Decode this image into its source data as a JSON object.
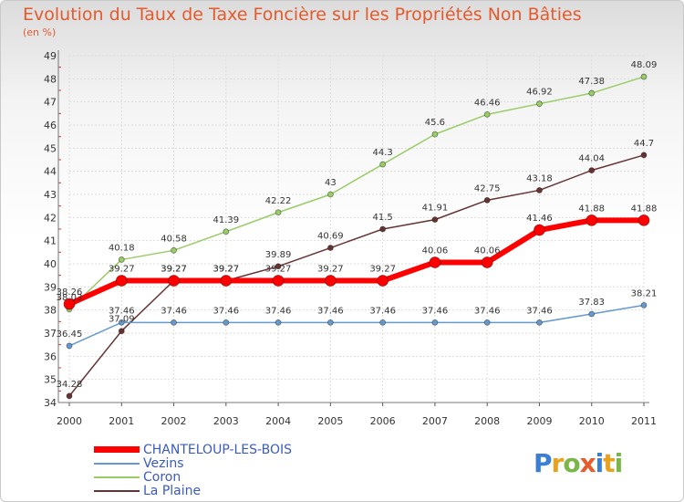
{
  "chart_data": {
    "type": "line",
    "title": "Evolution du Taux de Taxe Foncière sur les Propriétés Non Bâties",
    "ylabel": "(en %)",
    "xlabel": "",
    "x": [
      "2000",
      "2001",
      "2002",
      "2003",
      "2004",
      "2005",
      "2006",
      "2007",
      "2008",
      "2009",
      "2010",
      "2011"
    ],
    "ylim": [
      34,
      49
    ],
    "yticks": [
      "34",
      "35",
      "36",
      "37",
      "38",
      "39",
      "40",
      "41",
      "42",
      "43",
      "44",
      "45",
      "46",
      "47",
      "48",
      "49"
    ],
    "grid": true,
    "legend_position": "bottom-left",
    "series": [
      {
        "name": "CHANTELOUP-LES-BOIS",
        "color": "#ff0000",
        "width": 6,
        "marker": 6,
        "values": [
          38.26,
          39.27,
          39.27,
          39.27,
          39.27,
          39.27,
          39.27,
          40.06,
          40.06,
          41.46,
          41.88,
          41.88
        ],
        "labels": [
          "38.26",
          "39.27",
          "39.27",
          "39.27",
          "39.27",
          "39.27",
          "39.27",
          "40.06",
          "40.06",
          "41.46",
          "41.88",
          "41.88"
        ]
      },
      {
        "name": "Vezins",
        "color": "#6699cc",
        "width": 1.5,
        "marker": 3,
        "values": [
          36.45,
          37.46,
          37.46,
          37.46,
          37.46,
          37.46,
          37.46,
          37.46,
          37.46,
          37.46,
          37.83,
          38.21
        ],
        "labels": [
          "36.45",
          "37.46",
          "37.46",
          "37.46",
          "37.46",
          "37.46",
          "37.46",
          "37.46",
          "37.46",
          "37.46",
          "37.83",
          "38.21"
        ]
      },
      {
        "name": "Coron",
        "color": "#99cc66",
        "width": 1.5,
        "marker": 3,
        "values": [
          38.03,
          40.18,
          40.58,
          41.39,
          42.22,
          43,
          44.3,
          45.6,
          46.46,
          46.92,
          47.38,
          48.09
        ],
        "labels": [
          "38.03",
          "40.18",
          "40.58",
          "41.39",
          "42.22",
          "43",
          "44.3",
          "45.6",
          "46.46",
          "46.92",
          "47.38",
          "48.09"
        ]
      },
      {
        "name": "La Plaine",
        "color": "#663333",
        "width": 1.5,
        "marker": 3,
        "values": [
          34.28,
          37.09,
          39.27,
          39.27,
          39.89,
          40.69,
          41.5,
          41.91,
          42.75,
          43.18,
          44.04,
          44.7
        ],
        "labels": [
          "34.28",
          "37.09",
          "39.27",
          "39.27",
          "39.89",
          "40.69",
          "41.5",
          "41.91",
          "42.75",
          "43.18",
          "44.04",
          "44.7"
        ]
      }
    ]
  },
  "legend": {
    "items": [
      {
        "label": "CHANTELOUP-LES-BOIS",
        "color": "#ff0000"
      },
      {
        "label": "Vezins",
        "color": "#6699cc"
      },
      {
        "label": "Coron",
        "color": "#99cc66"
      },
      {
        "label": "La Plaine",
        "color": "#663333"
      }
    ]
  },
  "logo": {
    "text": "Proxiti",
    "colors": [
      "#3a7fd5",
      "#e8a21f",
      "#7ab648",
      "#e65c2a",
      "#3a7fd5",
      "#e8a21f",
      "#7ab648"
    ]
  }
}
